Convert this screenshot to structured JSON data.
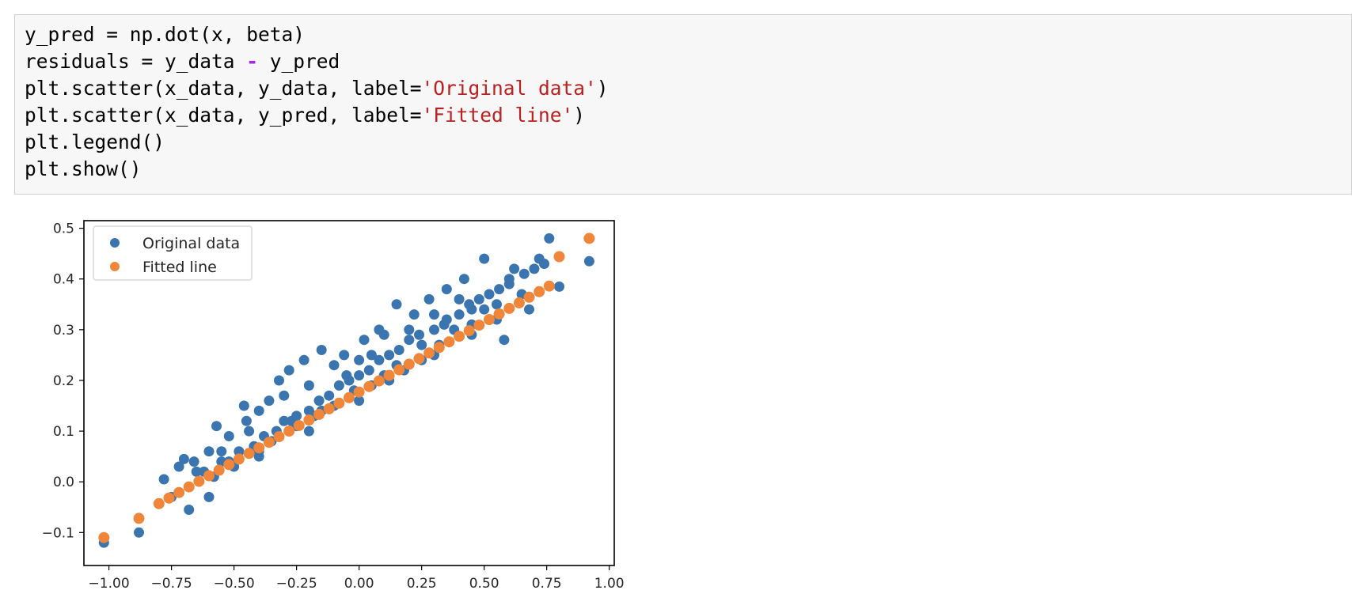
{
  "code_cell": {
    "lines": [
      [
        {
          "t": "y_pred = np.dot(x, beta)",
          "k": "code"
        }
      ],
      [
        {
          "t": "residuals = y_data ",
          "k": "code"
        },
        {
          "t": "-",
          "k": "op"
        },
        {
          "t": " y_pred",
          "k": "code"
        }
      ],
      [
        {
          "t": "plt.scatter(x_data, y_data, label=",
          "k": "code"
        },
        {
          "t": "'Original data'",
          "k": "str"
        },
        {
          "t": ")",
          "k": "code"
        }
      ],
      [
        {
          "t": "plt.scatter(x_data, y_pred, label=",
          "k": "code"
        },
        {
          "t": "'Fitted line'",
          "k": "str"
        },
        {
          "t": ")",
          "k": "code"
        }
      ],
      [
        {
          "t": "plt.legend()",
          "k": "code"
        }
      ],
      [
        {
          "t": "plt.show()",
          "k": "code"
        }
      ]
    ]
  },
  "chart_data": {
    "type": "scatter",
    "title": "",
    "xlabel": "",
    "ylabel": "",
    "xlim": [
      -1.1,
      1.02
    ],
    "ylim": [
      -0.165,
      0.515
    ],
    "xticks": [
      "−1.00",
      "−0.75",
      "−0.50",
      "−0.25",
      "0.00",
      "0.25",
      "0.50",
      "0.75",
      "1.00"
    ],
    "xtick_values": [
      -1.0,
      -0.75,
      -0.5,
      -0.25,
      0.0,
      0.25,
      0.5,
      0.75,
      1.0
    ],
    "yticks": [
      "−0.1",
      "0.0",
      "0.1",
      "0.2",
      "0.3",
      "0.4",
      "0.5"
    ],
    "ytick_values": [
      -0.1,
      0.0,
      0.1,
      0.2,
      0.3,
      0.4,
      0.5
    ],
    "grid": false,
    "legend_position": "top-left",
    "series": [
      {
        "name": "Original data",
        "color": "#3a75b0",
        "x": [
          -1.02,
          -0.88,
          -0.78,
          -0.72,
          -0.7,
          -0.68,
          -0.66,
          -0.62,
          -0.6,
          -0.57,
          -0.55,
          -0.52,
          -0.46,
          -0.44,
          -0.4,
          -0.36,
          -0.32,
          -0.28,
          -0.27,
          -0.22,
          -0.18,
          -0.15,
          -0.1,
          -0.06,
          -0.02,
          0.02,
          0.05,
          0.08,
          0.12,
          0.15,
          0.18,
          0.22,
          0.25,
          0.28,
          0.32,
          0.35,
          0.38,
          0.42,
          0.45,
          0.5,
          0.55,
          0.58,
          0.62,
          0.68,
          0.72,
          0.76,
          0.8,
          0.92,
          -0.75,
          -0.68,
          -0.65,
          -0.58,
          -0.52,
          -0.48,
          -0.42,
          -0.38,
          -0.33,
          -0.3,
          -0.25,
          -0.2,
          -0.16,
          -0.12,
          -0.08,
          -0.04,
          0.0,
          0.04,
          0.08,
          0.12,
          0.16,
          0.2,
          0.24,
          0.3,
          0.34,
          0.4,
          0.44,
          0.48,
          0.52,
          0.56,
          0.6,
          0.66,
          0.7,
          0.74,
          -0.5,
          -0.3,
          -0.1,
          0.1,
          0.3,
          0.5,
          -0.6,
          -0.4,
          -0.2,
          0.0,
          0.2,
          0.4,
          0.6,
          -0.35,
          -0.15,
          0.05,
          0.25,
          0.45,
          -0.45,
          -0.25,
          -0.05,
          0.15,
          0.35,
          0.55,
          -0.55,
          0.65,
          0.0,
          0.3,
          -0.2,
          0.1,
          -0.4,
          0.45
        ],
        "y": [
          -0.12,
          -0.1,
          0.005,
          0.03,
          0.045,
          -0.055,
          0.04,
          0.02,
          -0.03,
          0.11,
          0.06,
          0.09,
          0.15,
          0.1,
          0.14,
          0.16,
          0.2,
          0.22,
          0.12,
          0.24,
          0.13,
          0.26,
          0.15,
          0.25,
          0.18,
          0.28,
          0.19,
          0.3,
          0.2,
          0.35,
          0.22,
          0.33,
          0.24,
          0.36,
          0.27,
          0.38,
          0.3,
          0.4,
          0.31,
          0.44,
          0.32,
          0.28,
          0.42,
          0.34,
          0.44,
          0.48,
          0.385,
          0.435,
          -0.03,
          -0.01,
          0.02,
          0.01,
          0.04,
          0.06,
          0.07,
          0.09,
          0.1,
          0.12,
          0.13,
          0.14,
          0.16,
          0.17,
          0.19,
          0.2,
          0.21,
          0.22,
          0.24,
          0.25,
          0.26,
          0.28,
          0.29,
          0.3,
          0.31,
          0.33,
          0.35,
          0.36,
          0.37,
          0.38,
          0.39,
          0.41,
          0.42,
          0.43,
          0.03,
          0.17,
          0.23,
          0.21,
          0.25,
          0.34,
          0.06,
          0.05,
          0.19,
          0.24,
          0.3,
          0.36,
          0.4,
          0.08,
          0.14,
          0.25,
          0.27,
          0.29,
          0.12,
          0.11,
          0.21,
          0.23,
          0.32,
          0.35,
          0.04,
          0.37,
          0.16,
          0.33,
          0.1,
          0.29,
          0.06,
          0.34
        ]
      },
      {
        "name": "Fitted line",
        "color": "#f0863a",
        "x": [
          -1.02,
          -0.88,
          -0.8,
          -0.76,
          -0.72,
          -0.68,
          -0.64,
          -0.6,
          -0.56,
          -0.52,
          -0.48,
          -0.44,
          -0.4,
          -0.36,
          -0.32,
          -0.28,
          -0.24,
          -0.2,
          -0.16,
          -0.12,
          -0.08,
          -0.04,
          0.0,
          0.04,
          0.08,
          0.12,
          0.16,
          0.2,
          0.24,
          0.28,
          0.32,
          0.36,
          0.4,
          0.44,
          0.48,
          0.52,
          0.56,
          0.6,
          0.64,
          0.68,
          0.72,
          0.76,
          0.8,
          0.92
        ],
        "y": [
          -0.11,
          -0.072,
          -0.043,
          -0.032,
          -0.021,
          -0.01,
          0.001,
          0.012,
          0.023,
          0.034,
          0.045,
          0.056,
          0.067,
          0.078,
          0.089,
          0.1,
          0.111,
          0.122,
          0.133,
          0.144,
          0.155,
          0.166,
          0.177,
          0.188,
          0.199,
          0.21,
          0.221,
          0.232,
          0.243,
          0.254,
          0.265,
          0.276,
          0.287,
          0.298,
          0.309,
          0.32,
          0.331,
          0.342,
          0.353,
          0.364,
          0.375,
          0.386,
          0.444,
          0.48
        ]
      }
    ]
  }
}
